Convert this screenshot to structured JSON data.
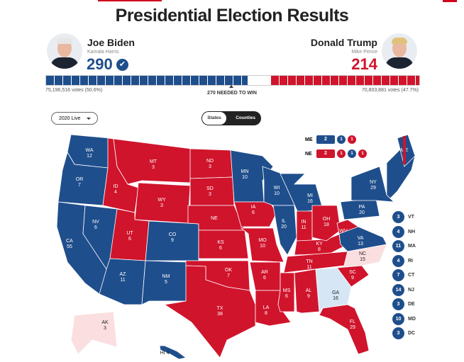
{
  "title": "Presidential Election Results",
  "colors": {
    "dem": "#1f4e8c",
    "rep": "#d0142c",
    "lean_dem": "#d6e6f5",
    "lean_rep": "#fbdfe0"
  },
  "biden": {
    "name": "Joe Biden",
    "vp": "Kamala Harris",
    "ev": "290",
    "check": "✔",
    "votes": "75,196,516 votes (50.6%)"
  },
  "trump": {
    "name": "Donald Trump",
    "vp": "Mike Pence",
    "ev": "214",
    "votes": "70,803,881 votes (47.7%)"
  },
  "bar": {
    "dem_ev": 290,
    "rep_ev": 214,
    "total": 538
  },
  "needed": "270 NEEDED TO WIN",
  "year_select": "2020 Live",
  "view_toggle": {
    "states": "States",
    "counties": "Counties",
    "active": "Counties"
  },
  "split": {
    "me": {
      "label": "ME",
      "box": "2",
      "box_party": "dem",
      "dots": [
        {
          "v": "1",
          "p": "dem"
        },
        {
          "v": "1",
          "p": "rep"
        }
      ]
    },
    "ne": {
      "label": "NE",
      "box": "2",
      "box_party": "rep",
      "dots": [
        {
          "v": "1",
          "p": "rep"
        },
        {
          "v": "1",
          "p": "dem"
        },
        {
          "v": "1",
          "p": "rep"
        }
      ]
    }
  },
  "states": [
    {
      "id": "WA",
      "ev": "12",
      "p": "dem"
    },
    {
      "id": "OR",
      "ev": "7",
      "p": "dem"
    },
    {
      "id": "CA",
      "ev": "55",
      "p": "dem"
    },
    {
      "id": "NV",
      "ev": "6",
      "p": "dem"
    },
    {
      "id": "ID",
      "ev": "4",
      "p": "rep"
    },
    {
      "id": "MT",
      "ev": "3",
      "p": "rep"
    },
    {
      "id": "WY",
      "ev": "3",
      "p": "rep"
    },
    {
      "id": "UT",
      "ev": "6",
      "p": "rep"
    },
    {
      "id": "CO",
      "ev": "9",
      "p": "dem"
    },
    {
      "id": "AZ",
      "ev": "11",
      "p": "dem"
    },
    {
      "id": "NM",
      "ev": "5",
      "p": "dem"
    },
    {
      "id": "ND",
      "ev": "3",
      "p": "rep"
    },
    {
      "id": "SD",
      "ev": "3",
      "p": "rep"
    },
    {
      "id": "NE",
      "ev": "",
      "p": "rep"
    },
    {
      "id": "KS",
      "ev": "6",
      "p": "rep"
    },
    {
      "id": "OK",
      "ev": "7",
      "p": "rep"
    },
    {
      "id": "TX",
      "ev": "38",
      "p": "rep"
    },
    {
      "id": "MN",
      "ev": "10",
      "p": "dem"
    },
    {
      "id": "IA",
      "ev": "6",
      "p": "rep"
    },
    {
      "id": "MO",
      "ev": "10",
      "p": "rep"
    },
    {
      "id": "AR",
      "ev": "6",
      "p": "rep"
    },
    {
      "id": "LA",
      "ev": "8",
      "p": "rep"
    },
    {
      "id": "WI",
      "ev": "10",
      "p": "dem"
    },
    {
      "id": "IL",
      "ev": "20",
      "p": "dem"
    },
    {
      "id": "MS",
      "ev": "6",
      "p": "rep"
    },
    {
      "id": "MI",
      "ev": "16",
      "p": "dem"
    },
    {
      "id": "IN",
      "ev": "11",
      "p": "rep"
    },
    {
      "id": "KY",
      "ev": "8",
      "p": "rep"
    },
    {
      "id": "TN",
      "ev": "11",
      "p": "rep"
    },
    {
      "id": "AL",
      "ev": "9",
      "p": "rep"
    },
    {
      "id": "OH",
      "ev": "18",
      "p": "rep"
    },
    {
      "id": "WV",
      "ev": "5",
      "p": "rep"
    },
    {
      "id": "VA",
      "ev": "13",
      "p": "dem"
    },
    {
      "id": "NC",
      "ev": "15",
      "p": "lean_rep"
    },
    {
      "id": "SC",
      "ev": "9",
      "p": "rep"
    },
    {
      "id": "GA",
      "ev": "16",
      "p": "lean_dem"
    },
    {
      "id": "FL",
      "ev": "29",
      "p": "rep"
    },
    {
      "id": "PA",
      "ev": "20",
      "p": "dem"
    },
    {
      "id": "NY",
      "ev": "29",
      "p": "dem"
    },
    {
      "id": "NE_ENG",
      "ev": "",
      "p": "dem"
    },
    {
      "id": "ME",
      "ev": "",
      "p": "dem"
    },
    {
      "id": "AK",
      "ev": "3",
      "p": "lean_rep"
    },
    {
      "id": "HI",
      "ev": "4",
      "p": "dem"
    }
  ],
  "small_states": [
    {
      "id": "VT",
      "ev": "3"
    },
    {
      "id": "NH",
      "ev": "4"
    },
    {
      "id": "MA",
      "ev": "11"
    },
    {
      "id": "RI",
      "ev": "4"
    },
    {
      "id": "CT",
      "ev": "7"
    },
    {
      "id": "NJ",
      "ev": "14"
    },
    {
      "id": "DE",
      "ev": "3"
    },
    {
      "id": "MD",
      "ev": "10"
    },
    {
      "id": "DC",
      "ev": "3"
    }
  ]
}
